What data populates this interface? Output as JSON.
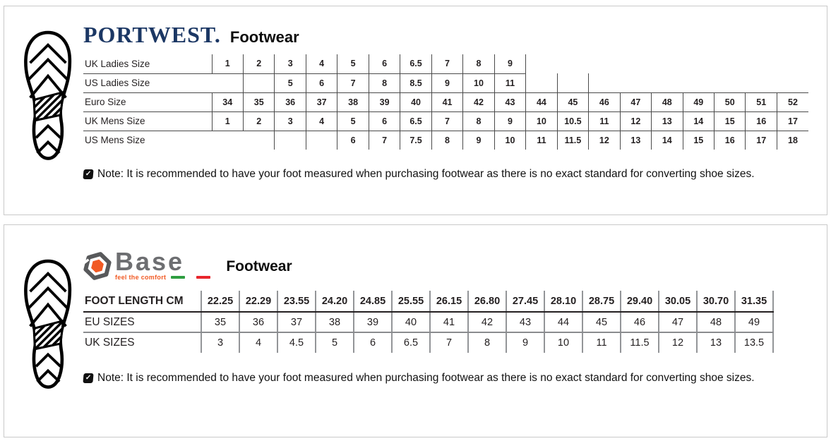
{
  "icons": {
    "note_check": "✓"
  },
  "panels": {
    "portwest": {
      "brand": "PORTWEST.",
      "brand_color": "#1b3764",
      "title": "Footwear",
      "table": {
        "rows": [
          {
            "label": "UK Ladies Size",
            "values": [
              "1",
              "2",
              "3",
              "4",
              "5",
              "6",
              "6.5",
              "7",
              "8",
              "9",
              null,
              null,
              null,
              null,
              null,
              null,
              null,
              null,
              null
            ]
          },
          {
            "label": "US Ladies Size",
            "values": [
              "",
              "",
              "5",
              "6",
              "7",
              "8",
              "8.5",
              "9",
              "10",
              "11",
              "",
              "",
              null,
              null,
              null,
              null,
              null,
              null,
              null
            ]
          },
          {
            "label": "Euro Size",
            "values": [
              "34",
              "35",
              "36",
              "37",
              "38",
              "39",
              "40",
              "41",
              "42",
              "43",
              "44",
              "45",
              "46",
              "47",
              "48",
              "49",
              "50",
              "51",
              "52"
            ]
          },
          {
            "label": "UK Mens Size",
            "values": [
              "1",
              "2",
              "3",
              "4",
              "5",
              "6",
              "6.5",
              "7",
              "8",
              "9",
              "10",
              "10.5",
              "11",
              "12",
              "13",
              "14",
              "15",
              "16",
              "17"
            ]
          },
          {
            "label": "US Mens Size",
            "values": [
              null,
              null,
              "",
              "",
              "6",
              "7",
              "7.5",
              "8",
              "9",
              "10",
              "11",
              "11.5",
              "12",
              "13",
              "14",
              "15",
              "16",
              "17",
              "18"
            ]
          }
        ]
      },
      "note": "Note: It is recommended to have your foot measured when purchasing footwear as there is no exact standard for converting shoe sizes."
    },
    "base": {
      "brand": "Base",
      "tagline": "feel the comfort",
      "title": "Footwear",
      "brand_colors": {
        "gray": "#6d6e71",
        "orange": "#f15a24",
        "flag_green": "#2f9e41",
        "flag_red": "#e8262d"
      },
      "table": {
        "rows": [
          {
            "label": "FOOT LENGTH CM",
            "values": [
              "22.25",
              "22.29",
              "23.55",
              "24.20",
              "24.85",
              "25.55",
              "26.15",
              "26.80",
              "27.45",
              "28.10",
              "28.75",
              "29.40",
              "30.05",
              "30.70",
              "31.35"
            ]
          },
          {
            "label": "EU SIZES",
            "values": [
              "35",
              "36",
              "37",
              "38",
              "39",
              "40",
              "41",
              "42",
              "43",
              "44",
              "45",
              "46",
              "47",
              "48",
              "49"
            ]
          },
          {
            "label": "UK SIZES",
            "values": [
              "3",
              "4",
              "4.5",
              "5",
              "6",
              "6.5",
              "7",
              "8",
              "9",
              "10",
              "11",
              "11.5",
              "12",
              "13",
              "13.5"
            ]
          }
        ]
      },
      "note": "Note: It is recommended to have your foot measured when purchasing footwear as there is no exact standard for converting shoe sizes."
    }
  }
}
